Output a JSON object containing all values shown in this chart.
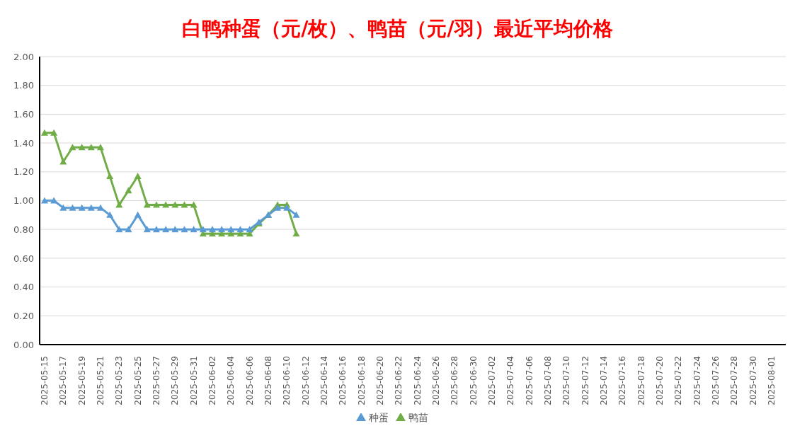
{
  "chart_data": {
    "type": "line",
    "title": "白鸭种蛋（元/枚）、鸭苗（元/羽）最近平均价格",
    "categories": [
      "2025-05-15",
      null,
      "2025-05-17",
      null,
      "2025-05-19",
      null,
      "2025-05-21",
      null,
      "2025-05-23",
      null,
      "2025-05-25",
      null,
      "2025-05-27",
      null,
      "2025-05-29",
      null,
      "2025-05-31",
      null,
      "2025-06-02",
      null,
      "2025-06-04",
      null,
      "2025-06-06",
      null,
      "2025-06-08",
      null,
      "2025-06-10",
      null,
      "2025-06-12",
      null,
      "2025-06-14",
      null,
      "2025-06-16",
      null,
      "2025-06-18",
      null,
      "2025-06-20",
      null,
      "2025-06-22",
      null,
      "2025-06-24",
      null,
      "2025-06-26",
      null,
      "2025-06-28",
      null,
      "2025-06-30",
      null,
      "2025-07-02",
      null,
      "2025-07-04",
      null,
      "2025-07-06",
      null,
      "2025-07-08",
      null,
      "2025-07-10",
      null,
      "2025-07-12",
      null,
      "2025-07-14",
      null,
      "2025-07-16",
      null,
      "2025-07-18",
      null,
      "2025-07-20",
      null,
      "2025-07-22",
      null,
      "2025-07-24",
      null,
      "2025-07-26",
      null,
      "2025-07-28",
      null,
      "2025-07-30",
      null,
      "2025-08-01",
      null
    ],
    "series": [
      {
        "name": "鸭苗",
        "color": "#70ad47",
        "values": [
          1.47,
          1.47,
          1.27,
          1.37,
          1.37,
          1.37,
          1.37,
          1.17,
          0.97,
          1.07,
          1.17,
          0.97,
          0.97,
          0.97,
          0.97,
          0.97,
          0.97,
          0.77,
          0.77,
          0.77,
          0.77,
          0.77,
          0.77,
          0.84,
          0.9,
          0.97,
          0.97,
          0.77,
          null,
          null,
          null,
          null,
          null,
          null,
          null,
          null,
          null,
          null,
          null,
          null,
          null,
          null,
          null,
          null,
          null,
          null,
          null,
          null,
          null,
          null,
          null,
          null,
          null,
          null,
          null,
          null,
          null,
          null,
          null,
          null,
          null,
          null,
          null,
          null,
          null,
          null,
          null,
          null,
          null,
          null,
          null,
          null,
          null,
          null,
          null,
          null,
          null,
          null,
          null,
          null
        ]
      },
      {
        "name": "种蛋",
        "color": "#5b9bd5",
        "values": [
          1.0,
          1.0,
          0.95,
          0.95,
          0.95,
          0.95,
          0.95,
          0.9,
          0.8,
          0.8,
          0.9,
          0.8,
          0.8,
          0.8,
          0.8,
          0.8,
          0.8,
          0.8,
          0.8,
          0.8,
          0.8,
          0.8,
          0.8,
          0.85,
          0.9,
          0.95,
          0.95,
          0.9,
          null,
          null,
          null,
          null,
          null,
          null,
          null,
          null,
          null,
          null,
          null,
          null,
          null,
          null,
          null,
          null,
          null,
          null,
          null,
          null,
          null,
          null,
          null,
          null,
          null,
          null,
          null,
          null,
          null,
          null,
          null,
          null,
          null,
          null,
          null,
          null,
          null,
          null,
          null,
          null,
          null,
          null,
          null,
          null,
          null,
          null,
          null,
          null,
          null,
          null,
          null,
          null
        ]
      }
    ],
    "ylim": [
      0,
      2
    ],
    "yticks": [
      {
        "value": 0,
        "label": "0.00"
      },
      {
        "value": 0.2,
        "label": "0.20"
      },
      {
        "value": 0.4,
        "label": "0.40"
      },
      {
        "value": 0.6,
        "label": "0.60"
      },
      {
        "value": 0.8,
        "label": "0.80"
      },
      {
        "value": 1,
        "label": "1.00"
      },
      {
        "value": 1.2,
        "label": "1.20"
      },
      {
        "value": 1.4,
        "label": "1.40"
      },
      {
        "value": 1.6,
        "label": "1.60"
      },
      {
        "value": 1.8,
        "label": "1.80"
      },
      {
        "value": 2,
        "label": "2.00"
      }
    ],
    "grid": "y",
    "legend": "bottom",
    "marker": "triangle",
    "line_style": "solid"
  }
}
